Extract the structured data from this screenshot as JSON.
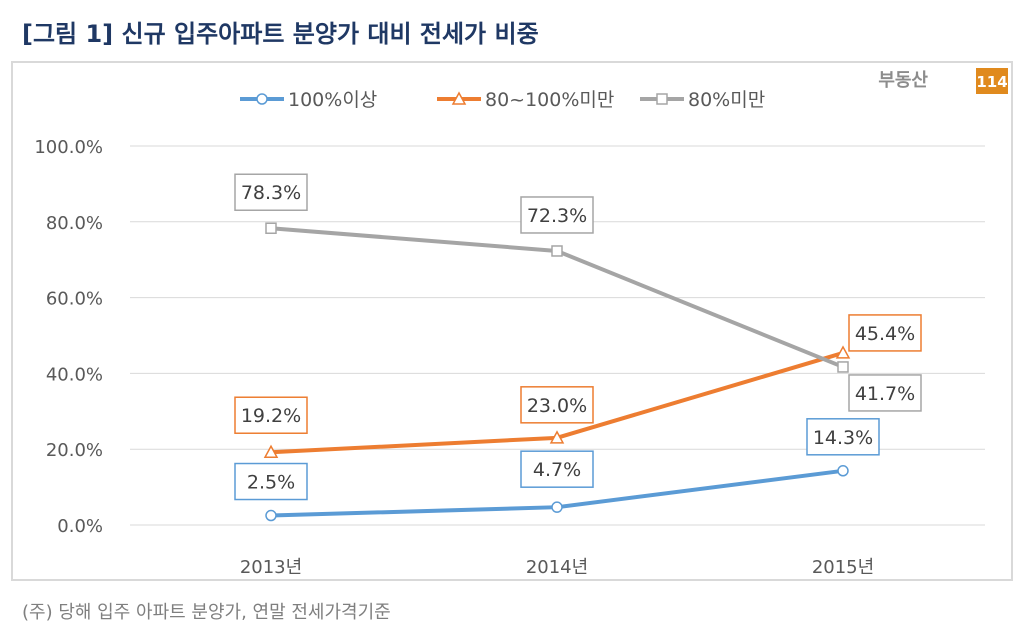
{
  "title": "[그림 1] 신규 입주아파트 분양가 대비 전세가 비중",
  "footnote": "(주) 당해 입주 아파트 분양가, 연말 전세가격기준",
  "logo": {
    "text": "부동산",
    "badge": "114"
  },
  "chart_data": {
    "type": "line",
    "categories": [
      "2013년",
      "2014년",
      "2015년"
    ],
    "ylim": [
      0,
      100
    ],
    "yticks": [
      "0.0%",
      "20.0%",
      "40.0%",
      "60.0%",
      "80.0%",
      "100.0%"
    ],
    "ytick_values": [
      0,
      20,
      40,
      60,
      80,
      100
    ],
    "grid": true,
    "legend_position": "top",
    "series": [
      {
        "name": "100%이상",
        "values": [
          2.5,
          4.7,
          14.3
        ],
        "labels": [
          "2.5%",
          "4.7%",
          "14.3%"
        ],
        "color": "#5b9bd5",
        "marker": "circle"
      },
      {
        "name": "80~100%미만",
        "values": [
          19.2,
          23.0,
          45.4
        ],
        "labels": [
          "19.2%",
          "23.0%",
          "45.4%"
        ],
        "color": "#ed7d31",
        "marker": "triangle"
      },
      {
        "name": "80%미만",
        "values": [
          78.3,
          72.3,
          41.7
        ],
        "labels": [
          "78.3%",
          "72.3%",
          "41.7%"
        ],
        "color": "#a5a5a5",
        "marker": "square"
      }
    ]
  }
}
